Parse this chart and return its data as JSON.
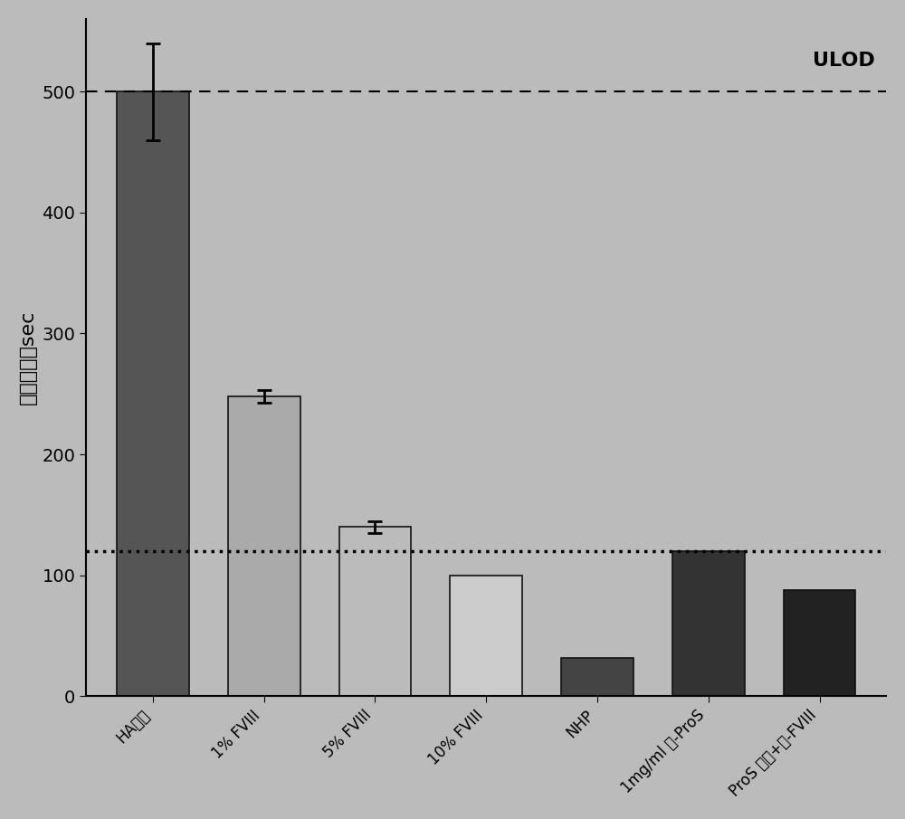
{
  "categories": [
    "HA血浆",
    "1% FVIII",
    "5% FVIII",
    "10% FVIII",
    "NHP",
    "1mg/ml 抗-ProS",
    "ProS 缺乏+抗-FVIII"
  ],
  "values": [
    500,
    248,
    140,
    100,
    32,
    120,
    88
  ],
  "error_bars": [
    40,
    5,
    5,
    0,
    0,
    0,
    0
  ],
  "bar_colors": [
    "#555555",
    "#aaaaaa",
    "#bbbbbb",
    "#cccccc",
    "#444444",
    "#333333",
    "#222222"
  ],
  "bar_edge_colors": [
    "#111111",
    "#111111",
    "#111111",
    "#111111",
    "#111111",
    "#111111",
    "#111111"
  ],
  "ylabel": "凝血时间，sec",
  "ylim": [
    0,
    560
  ],
  "yticks": [
    0,
    100,
    200,
    300,
    400,
    500
  ],
  "hline_upper": 500,
  "hline_lower": 120,
  "hline_upper_label": "ULOD",
  "background_color": "#bbbbbb",
  "ylabel_fontsize": 16,
  "tick_fontsize": 14,
  "label_fontsize": 12
}
